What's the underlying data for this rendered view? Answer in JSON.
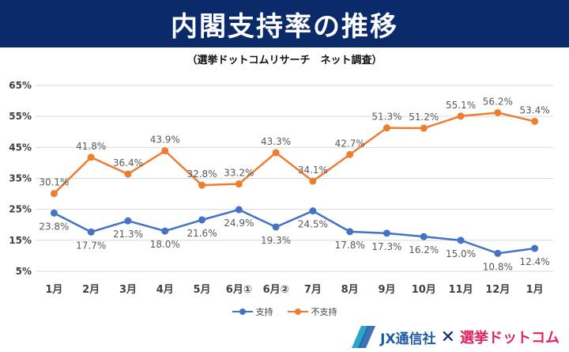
{
  "title": "内閣支持率の推移",
  "subtitle": "（選挙ドットコムリサーチ　ネット調査）",
  "chart_data": {
    "type": "line",
    "categories": [
      "1月",
      "2月",
      "3月",
      "4月",
      "5月",
      "6月①",
      "6月②",
      "7月",
      "8月",
      "9月",
      "10月",
      "11月",
      "12月",
      "1月"
    ],
    "series": [
      {
        "name": "支持",
        "color": "#4472c4",
        "values": [
          23.8,
          17.7,
          21.3,
          18.0,
          21.6,
          24.9,
          19.3,
          24.5,
          17.8,
          17.3,
          16.2,
          15.0,
          10.8,
          12.4
        ],
        "label_position": "below"
      },
      {
        "name": "不支持",
        "color": "#ed7d31",
        "values": [
          30.1,
          41.8,
          36.4,
          43.9,
          32.8,
          33.2,
          43.3,
          34.1,
          42.7,
          51.3,
          51.2,
          55.1,
          56.2,
          53.4
        ],
        "label_position": "above"
      }
    ],
    "ylim": [
      5,
      65
    ],
    "yticks": [
      "5%",
      "15%",
      "25%",
      "35%",
      "45%",
      "55%",
      "65%"
    ],
    "ytick_values": [
      5,
      15,
      25,
      35,
      45,
      55,
      65
    ],
    "grid": true,
    "legend": "bottom"
  },
  "logos": {
    "jx": "JX通信社",
    "cross": "✕",
    "sdc": "選挙ドットコム"
  },
  "colors": {
    "title_bg": "#0b2a6a",
    "support": "#4472c4",
    "oppose": "#ed7d31"
  }
}
